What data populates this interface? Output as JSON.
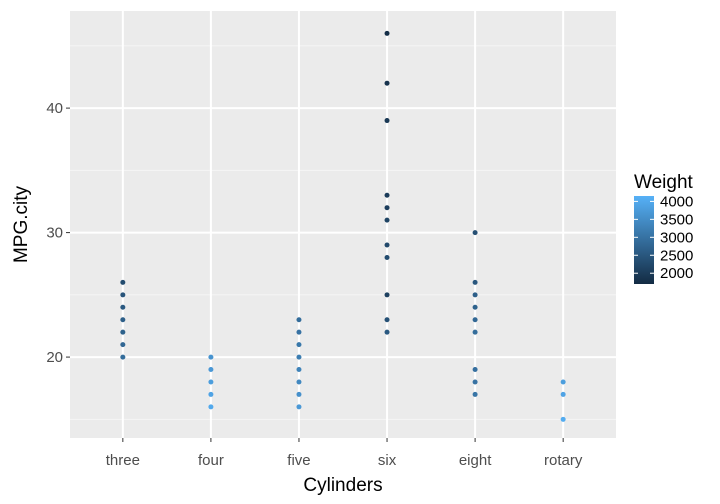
{
  "chart_data": {
    "type": "scatter",
    "title": "",
    "xlabel": "Cylinders",
    "ylabel": "MPG.city",
    "categories": [
      "three",
      "four",
      "five",
      "six",
      "eight",
      "rotary"
    ],
    "yticks": [
      20,
      30,
      40
    ],
    "ylim": [
      13.5,
      47.8
    ],
    "grid": true,
    "legend": {
      "title": "Weight",
      "position": "right",
      "ticks": [
        4000,
        3500,
        3000,
        2500,
        2000
      ],
      "range": [
        1700,
        4150
      ],
      "color_low": "#132b43",
      "color_high": "#56b1f7"
    },
    "points": [
      {
        "x": "three",
        "y": 26,
        "weight": 2300
      },
      {
        "x": "three",
        "y": 25,
        "weight": 2450
      },
      {
        "x": "three",
        "y": 24,
        "weight": 2550
      },
      {
        "x": "three",
        "y": 23,
        "weight": 2650
      },
      {
        "x": "three",
        "y": 22,
        "weight": 2700
      },
      {
        "x": "three",
        "y": 21,
        "weight": 2800
      },
      {
        "x": "three",
        "y": 20,
        "weight": 2900
      },
      {
        "x": "four",
        "y": 20,
        "weight": 3600
      },
      {
        "x": "four",
        "y": 19,
        "weight": 3700
      },
      {
        "x": "four",
        "y": 18,
        "weight": 3800
      },
      {
        "x": "four",
        "y": 17,
        "weight": 3900
      },
      {
        "x": "four",
        "y": 16,
        "weight": 4000
      },
      {
        "x": "five",
        "y": 23,
        "weight": 2900
      },
      {
        "x": "five",
        "y": 22,
        "weight": 3000
      },
      {
        "x": "five",
        "y": 21,
        "weight": 3100
      },
      {
        "x": "five",
        "y": 20,
        "weight": 3200
      },
      {
        "x": "five",
        "y": 19,
        "weight": 3300
      },
      {
        "x": "five",
        "y": 18,
        "weight": 3400
      },
      {
        "x": "five",
        "y": 17,
        "weight": 3550
      },
      {
        "x": "five",
        "y": 16,
        "weight": 3700
      },
      {
        "x": "six",
        "y": 46,
        "weight": 1750
      },
      {
        "x": "six",
        "y": 42,
        "weight": 1850
      },
      {
        "x": "six",
        "y": 39,
        "weight": 1950
      },
      {
        "x": "six",
        "y": 33,
        "weight": 2000
      },
      {
        "x": "six",
        "y": 32,
        "weight": 2050
      },
      {
        "x": "six",
        "y": 31,
        "weight": 2150
      },
      {
        "x": "six",
        "y": 29,
        "weight": 2250
      },
      {
        "x": "six",
        "y": 28,
        "weight": 2300
      },
      {
        "x": "six",
        "y": 25,
        "weight": 2100
      },
      {
        "x": "six",
        "y": 23,
        "weight": 2400
      },
      {
        "x": "six",
        "y": 22,
        "weight": 2550
      },
      {
        "x": "eight",
        "y": 30,
        "weight": 2350
      },
      {
        "x": "eight",
        "y": 26,
        "weight": 2500
      },
      {
        "x": "eight",
        "y": 25,
        "weight": 2650
      },
      {
        "x": "eight",
        "y": 24,
        "weight": 2700
      },
      {
        "x": "eight",
        "y": 23,
        "weight": 2800
      },
      {
        "x": "eight",
        "y": 22,
        "weight": 2900
      },
      {
        "x": "eight",
        "y": 19,
        "weight": 2950
      },
      {
        "x": "eight",
        "y": 18,
        "weight": 3000
      },
      {
        "x": "eight",
        "y": 17,
        "weight": 3050
      },
      {
        "x": "rotary",
        "y": 18,
        "weight": 3800
      },
      {
        "x": "rotary",
        "y": 17,
        "weight": 3900
      },
      {
        "x": "rotary",
        "y": 15,
        "weight": 4050
      }
    ]
  }
}
